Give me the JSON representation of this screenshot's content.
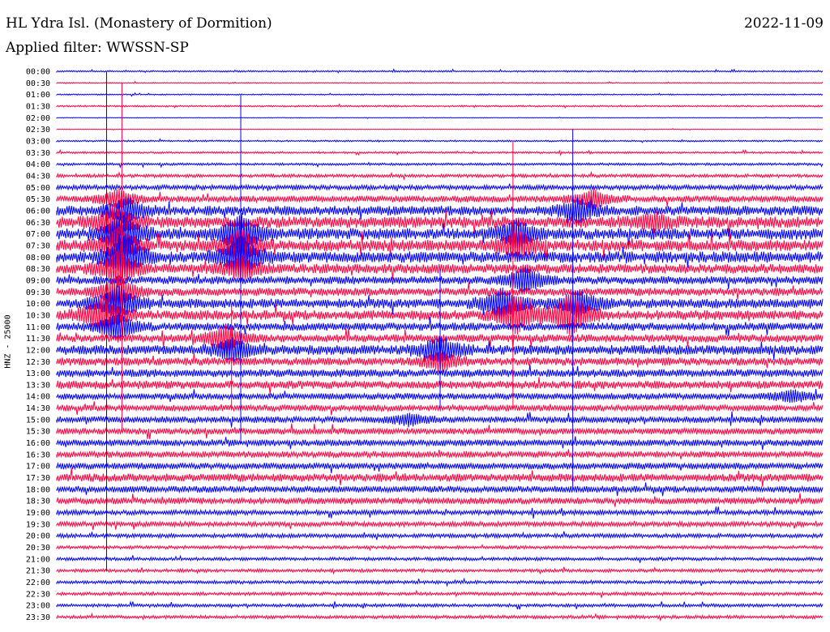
{
  "header": {
    "station": "HL Ydra Isl. (Monastery of Dormition)",
    "date": "2022-11-09",
    "filter": "Applied filter: WWSSN-SP"
  },
  "chart_data": {
    "type": "helicorder",
    "title": "HL Ydra Isl. (Monastery of Dormition)",
    "ylabel": "HNZ - 25000",
    "time_labels": [
      "00:00",
      "00:30",
      "01:00",
      "01:30",
      "02:00",
      "02:30",
      "03:00",
      "03:30",
      "04:00",
      "04:30",
      "05:00",
      "05:30",
      "06:00",
      "06:30",
      "07:00",
      "07:30",
      "08:00",
      "08:30",
      "09:00",
      "09:30",
      "10:00",
      "10:30",
      "11:00",
      "11:30",
      "12:00",
      "12:30",
      "13:00",
      "13:30",
      "14:00",
      "14:30",
      "15:00",
      "15:30",
      "16:00",
      "16:30",
      "17:00",
      "17:30",
      "18:00",
      "18:30",
      "19:00",
      "19:30",
      "20:00",
      "20:30",
      "21:00",
      "21:30",
      "22:00",
      "22:30",
      "23:00",
      "23:30"
    ],
    "trace_colors": [
      "#0000ff",
      "#ff0040"
    ],
    "noise_level": [
      1,
      0.6,
      0.8,
      1,
      0.4,
      0.4,
      1,
      1.2,
      1.5,
      2,
      3,
      4,
      6,
      7,
      7,
      7,
      7,
      6,
      5,
      5,
      6,
      6,
      5,
      5,
      6,
      5,
      5,
      5,
      4,
      4,
      4,
      4,
      4,
      4,
      4,
      5,
      4,
      4,
      3,
      3,
      2.5,
      2,
      2,
      2,
      2,
      2,
      2,
      2
    ],
    "events": [
      {
        "row": 11,
        "x": 0.08,
        "amp": 10
      },
      {
        "row": 12,
        "x": 0.09,
        "amp": 14
      },
      {
        "row": 13,
        "x": 0.075,
        "amp": 18
      },
      {
        "row": 14,
        "x": 0.085,
        "amp": 22
      },
      {
        "row": 15,
        "x": 0.08,
        "amp": 20
      },
      {
        "row": 16,
        "x": 0.09,
        "amp": 24
      },
      {
        "row": 17,
        "x": 0.08,
        "amp": 18
      },
      {
        "row": 19,
        "x": 0.08,
        "amp": 18
      },
      {
        "row": 20,
        "x": 0.08,
        "amp": 20
      },
      {
        "row": 21,
        "x": 0.06,
        "amp": 22
      },
      {
        "row": 22,
        "x": 0.08,
        "amp": 14
      },
      {
        "row": 14,
        "x": 0.24,
        "amp": 22
      },
      {
        "row": 15,
        "x": 0.24,
        "amp": 18
      },
      {
        "row": 16,
        "x": 0.24,
        "amp": 24
      },
      {
        "row": 17,
        "x": 0.24,
        "amp": 12
      },
      {
        "row": 23,
        "x": 0.22,
        "amp": 14
      },
      {
        "row": 24,
        "x": 0.23,
        "amp": 12
      },
      {
        "row": 24,
        "x": 0.5,
        "amp": 14
      },
      {
        "row": 25,
        "x": 0.5,
        "amp": 10
      },
      {
        "row": 30,
        "x": 0.46,
        "amp": 6
      },
      {
        "row": 14,
        "x": 0.6,
        "amp": 14
      },
      {
        "row": 15,
        "x": 0.6,
        "amp": 16
      },
      {
        "row": 18,
        "x": 0.61,
        "amp": 14
      },
      {
        "row": 20,
        "x": 0.58,
        "amp": 16
      },
      {
        "row": 21,
        "x": 0.6,
        "amp": 20
      },
      {
        "row": 21,
        "x": 0.67,
        "amp": 24
      },
      {
        "row": 20,
        "x": 0.68,
        "amp": 14
      },
      {
        "row": 12,
        "x": 0.68,
        "amp": 12
      },
      {
        "row": 11,
        "x": 0.7,
        "amp": 10
      },
      {
        "row": 13,
        "x": 0.78,
        "amp": 8
      },
      {
        "row": 28,
        "x": 0.96,
        "amp": 6
      }
    ],
    "spikes": [
      {
        "x": 0.065,
        "row_from": 0,
        "row_to": 43
      },
      {
        "x": 0.085,
        "row_from": 1,
        "row_to": 31
      },
      {
        "x": 0.24,
        "row_from": 2,
        "row_to": 32
      },
      {
        "x": 0.228,
        "row_from": 20,
        "row_to": 29
      },
      {
        "x": 0.5,
        "row_from": 17,
        "row_to": 29
      },
      {
        "x": 0.595,
        "row_from": 6,
        "row_to": 29
      },
      {
        "x": 0.673,
        "row_from": 5,
        "row_to": 36
      }
    ]
  }
}
